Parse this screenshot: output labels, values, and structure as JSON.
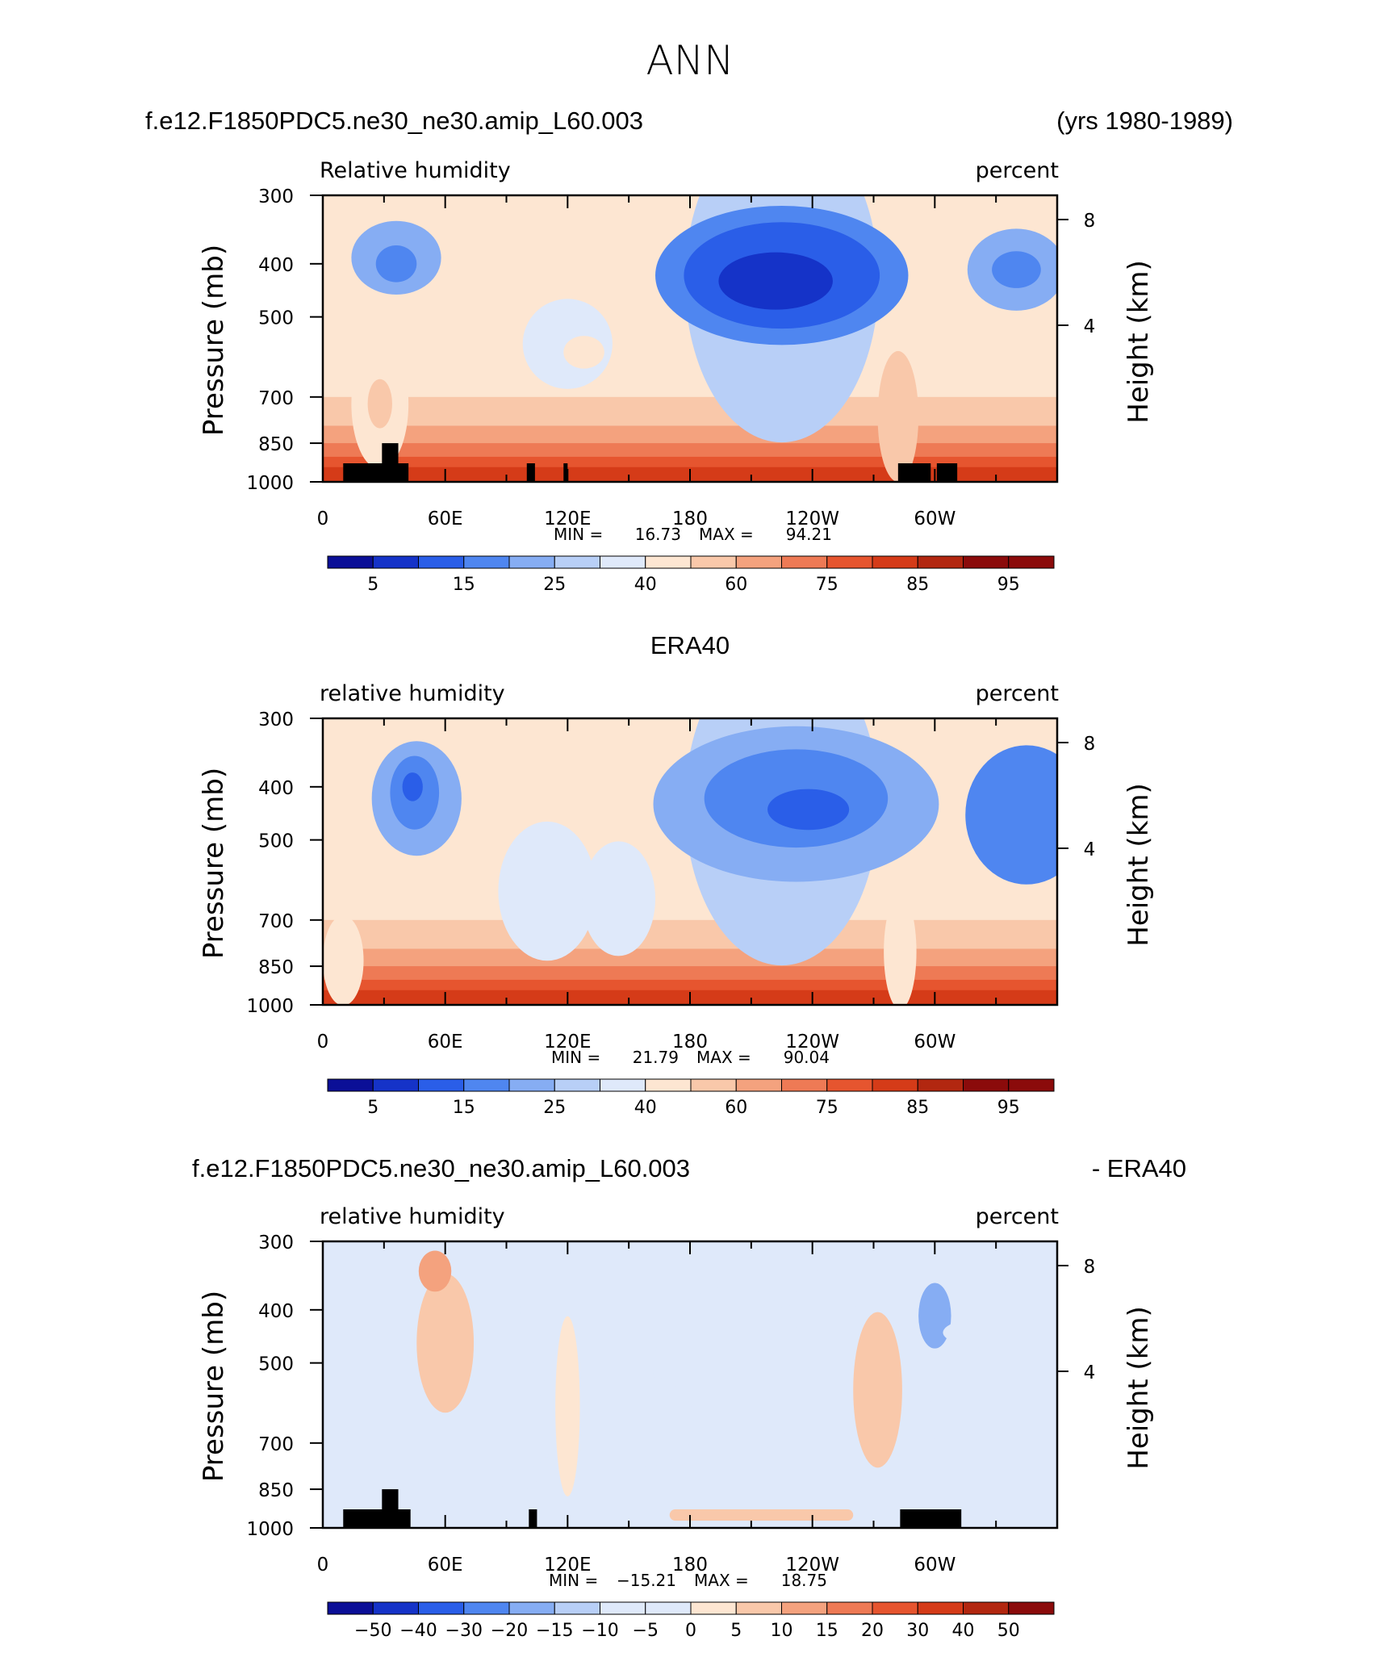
{
  "main_title": "ANN",
  "chart_data": [
    {
      "type": "heatmap",
      "case_name": "f.e12.F1850PDC5.ne30_ne30.amip_L60.003",
      "years": "(yrs 1980-1989)",
      "left_title": "Relative humidity",
      "right_title": "percent",
      "ylabel_left": "Pressure (mb)",
      "ylabel_right": "Height (km)",
      "x_ticks": [
        "0",
        "60E",
        "120E",
        "180",
        "120W",
        "60W"
      ],
      "y_ticks": [
        "300",
        "400",
        "500",
        "700",
        "850",
        "1000"
      ],
      "y_right_ticks": [
        "8",
        "4"
      ],
      "xlim": [
        0,
        360
      ],
      "ylim": [
        1000,
        300
      ],
      "minmax": {
        "min_label": "MIN =",
        "min": "16.73",
        "max_label": "MAX =",
        "max": "94.21"
      },
      "levels": [
        "5",
        "15",
        "25",
        "40",
        "60",
        "75",
        "85",
        "95"
      ],
      "blobs": [
        {
          "lon": 36,
          "p": 390,
          "rx": 22,
          "ry": 90,
          "level": 4
        },
        {
          "lon": 36,
          "p": 400,
          "rx": 10,
          "ry": 45,
          "level": 3
        },
        {
          "lon": 225,
          "p": 420,
          "rx": 62,
          "ry": 170,
          "level": 3
        },
        {
          "lon": 225,
          "p": 420,
          "rx": 48,
          "ry": 130,
          "level": 2
        },
        {
          "lon": 222,
          "p": 430,
          "rx": 28,
          "ry": 70,
          "level": 1
        },
        {
          "lon": 340,
          "p": 410,
          "rx": 24,
          "ry": 100,
          "level": 4
        },
        {
          "lon": 340,
          "p": 410,
          "rx": 12,
          "ry": 45,
          "level": 3
        },
        {
          "lon": 120,
          "p": 560,
          "rx": 22,
          "ry": 110,
          "level": 6
        },
        {
          "lon": 128,
          "p": 580,
          "rx": 10,
          "ry": 40,
          "level": 7
        },
        {
          "lon": 28,
          "p": 720,
          "rx": 14,
          "ry": 160,
          "level": 7
        },
        {
          "lon": 28,
          "p": 720,
          "rx": 6,
          "ry": 60,
          "level": 8
        },
        {
          "lon": 282,
          "p": 760,
          "rx": 10,
          "ry": 160,
          "level": 8
        }
      ],
      "topo": [
        {
          "lon1": 10,
          "lon2": 42,
          "p": 925
        },
        {
          "lon1": 29,
          "lon2": 37,
          "p": 850
        },
        {
          "lon1": 100,
          "lon2": 104,
          "p": 925
        },
        {
          "lon1": 118,
          "lon2": 120,
          "p": 925
        },
        {
          "lon1": 282,
          "lon2": 298,
          "p": 925
        },
        {
          "lon1": 301,
          "lon2": 311,
          "p": 925
        }
      ]
    },
    {
      "type": "heatmap",
      "case_name": "ERA40",
      "left_title": "relative humidity",
      "right_title": "percent",
      "ylabel_left": "Pressure (mb)",
      "ylabel_right": "Height (km)",
      "x_ticks": [
        "0",
        "60E",
        "120E",
        "180",
        "120W",
        "60W"
      ],
      "y_ticks": [
        "300",
        "400",
        "500",
        "700",
        "850",
        "1000"
      ],
      "y_right_ticks": [
        "8",
        "4"
      ],
      "xlim": [
        0,
        360
      ],
      "ylim": [
        1000,
        300
      ],
      "minmax": {
        "min_label": "MIN =",
        "min": "21.79",
        "max_label": "MAX =",
        "max": "90.04"
      },
      "levels": [
        "5",
        "15",
        "25",
        "40",
        "60",
        "75",
        "85",
        "95"
      ],
      "blobs": [
        {
          "lon": 46,
          "p": 420,
          "rx": 22,
          "ry": 140,
          "level": 4
        },
        {
          "lon": 45,
          "p": 410,
          "rx": 12,
          "ry": 90,
          "level": 3
        },
        {
          "lon": 44,
          "p": 400,
          "rx": 5,
          "ry": 35,
          "level": 2
        },
        {
          "lon": 232,
          "p": 430,
          "rx": 70,
          "ry": 190,
          "level": 4
        },
        {
          "lon": 232,
          "p": 420,
          "rx": 45,
          "ry": 120,
          "level": 3
        },
        {
          "lon": 238,
          "p": 440,
          "rx": 20,
          "ry": 50,
          "level": 2
        },
        {
          "lon": 345,
          "p": 450,
          "rx": 30,
          "ry": 170,
          "level": 3
        },
        {
          "lon": 110,
          "p": 620,
          "rx": 24,
          "ry": 170,
          "level": 6
        },
        {
          "lon": 145,
          "p": 640,
          "rx": 18,
          "ry": 140,
          "level": 6
        },
        {
          "lon": 10,
          "p": 830,
          "rx": 10,
          "ry": 110,
          "level": 7
        },
        {
          "lon": 283,
          "p": 800,
          "rx": 8,
          "ry": 140,
          "level": 7
        }
      ],
      "topo": []
    },
    {
      "type": "heatmap",
      "case_name": "f.e12.F1850PDC5.ne30_ne30.amip_L60.003",
      "suffix": "- ERA40",
      "left_title": "relative humidity",
      "right_title": "percent",
      "ylabel_left": "Pressure (mb)",
      "ylabel_right": "Height (km)",
      "x_ticks": [
        "0",
        "60E",
        "120E",
        "180",
        "120W",
        "60W"
      ],
      "y_ticks": [
        "300",
        "400",
        "500",
        "700",
        "850",
        "1000"
      ],
      "y_right_ticks": [
        "8",
        "4"
      ],
      "xlim": [
        0,
        360
      ],
      "ylim": [
        1000,
        300
      ],
      "minmax": {
        "min_label": "MIN =",
        "min": "−15.21",
        "max_label": "MAX =",
        "max": "18.75"
      },
      "levels": [
        "−50",
        "−40",
        "−30",
        "−20",
        "−15",
        "−10",
        "−5",
        "0",
        "5",
        "10",
        "15",
        "20",
        "30",
        "40",
        "50"
      ],
      "blobs": [
        {
          "lon": 60,
          "p": 460,
          "rx": 14,
          "ry": 170,
          "level": 9
        },
        {
          "lon": 55,
          "p": 340,
          "rx": 8,
          "ry": 50,
          "level": 10
        },
        {
          "lon": 95,
          "p": 660,
          "rx": 20,
          "ry": 100,
          "level": 6
        },
        {
          "lon": 200,
          "p": 520,
          "rx": 38,
          "ry": 210,
          "level": 6
        },
        {
          "lon": 158,
          "p": 640,
          "rx": 24,
          "ry": 110,
          "level": 6
        },
        {
          "lon": 300,
          "p": 410,
          "rx": 8,
          "ry": 80,
          "level": 4
        },
        {
          "lon": 272,
          "p": 560,
          "rx": 12,
          "ry": 190,
          "level": 9
        },
        {
          "lon": 332,
          "p": 440,
          "rx": 28,
          "ry": 40,
          "level": 6
        },
        {
          "lon": 120,
          "p": 600,
          "rx": 6,
          "ry": 220,
          "level": 8
        }
      ],
      "topo": [
        {
          "lon1": 10,
          "lon2": 43,
          "p": 925
        },
        {
          "lon1": 29,
          "lon2": 37,
          "p": 850
        },
        {
          "lon1": 101,
          "lon2": 105,
          "p": 925
        },
        {
          "lon1": 283,
          "lon2": 313,
          "p": 925
        }
      ]
    }
  ],
  "colors": {
    "rh_palette": [
      "#0b0f97",
      "#1533c8",
      "#2a5ee8",
      "#4f86f0",
      "#86adf3",
      "#b8cff7",
      "#dfe9fa",
      "#fde6d2",
      "#f9c8aa",
      "#f4a27e",
      "#ee7a55",
      "#e6552f",
      "#d53b18",
      "#b22710",
      "#8b0b0b"
    ],
    "diff_palette": [
      "#0b0f97",
      "#1533c8",
      "#2a5ee8",
      "#4f86f0",
      "#86adf3",
      "#b8cff7",
      "#dfe9fa",
      "#dfe9fa",
      "#fde6d2",
      "#f9c8aa",
      "#f4a27e",
      "#ee7a55",
      "#e6552f",
      "#d53b18",
      "#b22710",
      "#8b0b0b"
    ],
    "topography": "#000000"
  }
}
